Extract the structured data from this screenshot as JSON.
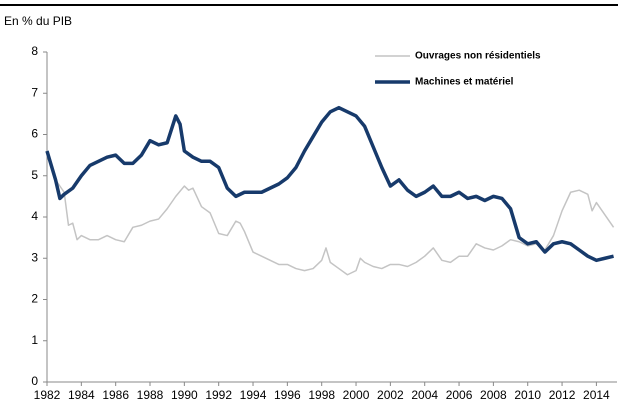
{
  "chart_data": {
    "type": "line",
    "y_axis_label": "En % du PIB",
    "xlim": [
      1982,
      2015.2
    ],
    "xticks": [
      1982,
      1984,
      1986,
      1988,
      1990,
      1992,
      1994,
      1996,
      1998,
      2000,
      2002,
      2004,
      2006,
      2008,
      2010,
      2012,
      2014
    ],
    "ylim": [
      0,
      8
    ],
    "yticks": [
      0,
      1,
      2,
      3,
      4,
      5,
      6,
      7,
      8
    ],
    "series": [
      {
        "name": "Ouvrages non résidentiels",
        "color": "#c4c4c4",
        "width": 1.5,
        "x": [
          1982.0,
          1982.5,
          1983.0,
          1983.25,
          1983.5,
          1983.75,
          1984.0,
          1984.5,
          1985.0,
          1985.5,
          1986.0,
          1986.5,
          1987.0,
          1987.5,
          1988.0,
          1988.5,
          1989.0,
          1989.5,
          1990.0,
          1990.25,
          1990.5,
          1991.0,
          1991.5,
          1992.0,
          1992.5,
          1993.0,
          1993.25,
          1993.5,
          1994.0,
          1994.5,
          1995.0,
          1995.5,
          1996.0,
          1996.5,
          1997.0,
          1997.5,
          1998.0,
          1998.25,
          1998.5,
          1999.0,
          1999.5,
          2000.0,
          2000.25,
          2000.5,
          2001.0,
          2001.5,
          2002.0,
          2002.5,
          2003.0,
          2003.5,
          2004.0,
          2004.5,
          2005.0,
          2005.5,
          2006.0,
          2006.5,
          2007.0,
          2007.5,
          2008.0,
          2008.5,
          2009.0,
          2009.5,
          2010.0,
          2010.5,
          2011.0,
          2011.5,
          2012.0,
          2012.5,
          2013.0,
          2013.5,
          2013.75,
          2014.0,
          2014.5,
          2015.0
        ],
        "values": [
          5.5,
          4.9,
          4.6,
          3.8,
          3.85,
          3.45,
          3.55,
          3.45,
          3.45,
          3.55,
          3.45,
          3.4,
          3.75,
          3.8,
          3.9,
          3.95,
          4.2,
          4.5,
          4.75,
          4.65,
          4.7,
          4.25,
          4.1,
          3.6,
          3.55,
          3.9,
          3.85,
          3.65,
          3.15,
          3.05,
          2.95,
          2.85,
          2.85,
          2.75,
          2.7,
          2.75,
          2.95,
          3.25,
          2.9,
          2.75,
          2.6,
          2.7,
          3.0,
          2.9,
          2.8,
          2.75,
          2.85,
          2.85,
          2.8,
          2.9,
          3.05,
          3.25,
          2.95,
          2.9,
          3.05,
          3.05,
          3.35,
          3.25,
          3.2,
          3.3,
          3.45,
          3.4,
          3.3,
          3.35,
          3.2,
          3.55,
          4.15,
          4.6,
          4.65,
          4.55,
          4.15,
          4.35,
          4.05,
          3.75
        ]
      },
      {
        "name": "Machines et matériel",
        "color": "#173a6b",
        "width": 3.5,
        "x": [
          1982.0,
          1982.5,
          1982.75,
          1983.0,
          1983.5,
          1984.0,
          1984.5,
          1985.0,
          1985.5,
          1986.0,
          1986.5,
          1987.0,
          1987.5,
          1988.0,
          1988.5,
          1989.0,
          1989.5,
          1989.75,
          1990.0,
          1990.5,
          1991.0,
          1991.5,
          1992.0,
          1992.5,
          1993.0,
          1993.5,
          1994.0,
          1994.5,
          1995.0,
          1995.5,
          1996.0,
          1996.5,
          1997.0,
          1997.5,
          1998.0,
          1998.5,
          1999.0,
          1999.5,
          2000.0,
          2000.5,
          2001.0,
          2001.5,
          2002.0,
          2002.5,
          2003.0,
          2003.5,
          2004.0,
          2004.5,
          2005.0,
          2005.5,
          2006.0,
          2006.5,
          2007.0,
          2007.5,
          2008.0,
          2008.5,
          2009.0,
          2009.5,
          2010.0,
          2010.5,
          2011.0,
          2011.5,
          2012.0,
          2012.5,
          2013.0,
          2013.5,
          2014.0,
          2014.5,
          2015.0
        ],
        "values": [
          5.6,
          4.9,
          4.45,
          4.55,
          4.7,
          5.0,
          5.25,
          5.35,
          5.45,
          5.5,
          5.3,
          5.3,
          5.5,
          5.85,
          5.75,
          5.8,
          6.45,
          6.25,
          5.6,
          5.45,
          5.35,
          5.35,
          5.2,
          4.7,
          4.5,
          4.6,
          4.6,
          4.6,
          4.7,
          4.8,
          4.95,
          5.2,
          5.6,
          5.95,
          6.3,
          6.55,
          6.65,
          6.55,
          6.45,
          6.2,
          5.7,
          5.2,
          4.75,
          4.9,
          4.65,
          4.5,
          4.6,
          4.75,
          4.5,
          4.5,
          4.6,
          4.45,
          4.5,
          4.4,
          4.5,
          4.45,
          4.2,
          3.5,
          3.35,
          3.4,
          3.15,
          3.35,
          3.4,
          3.35,
          3.2,
          3.05,
          2.95,
          3.0,
          3.05
        ]
      }
    ]
  }
}
